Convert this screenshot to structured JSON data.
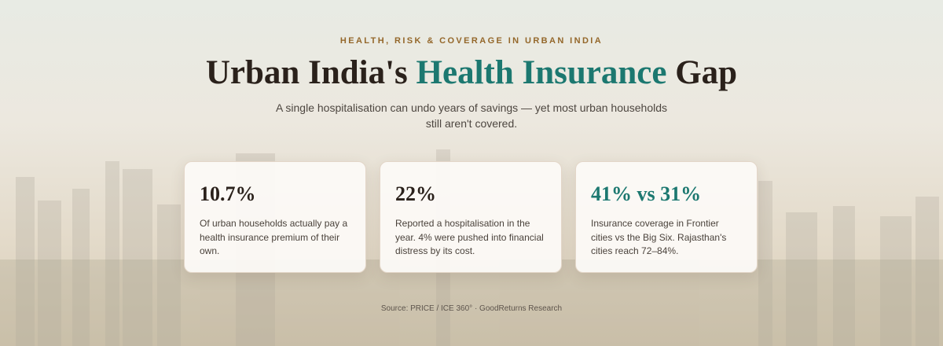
{
  "eyebrow": "HEALTH, RISK & COVERAGE IN URBAN INDIA",
  "title": {
    "before": "Urban India's",
    "highlight": "Health Insurance",
    "after": "Gap"
  },
  "subtitle": "A single hospitalisation can undo years of savings — yet most urban households still aren't covered.",
  "cards": [
    {
      "stat": "10.7%",
      "text": "Of urban households actually pay a health insurance premium of their own."
    },
    {
      "stat": "22%",
      "text": "Reported a hospitalisation in the year. 4% were pushed into financial distress by its cost."
    },
    {
      "stat": "41% vs 31%",
      "text": "Insurance coverage in Frontier cities vs the Big Six. Rajasthan's cities reach 72–84%."
    }
  ],
  "source": "Source: PRICE / ICE 360° · GoodReturns Research"
}
